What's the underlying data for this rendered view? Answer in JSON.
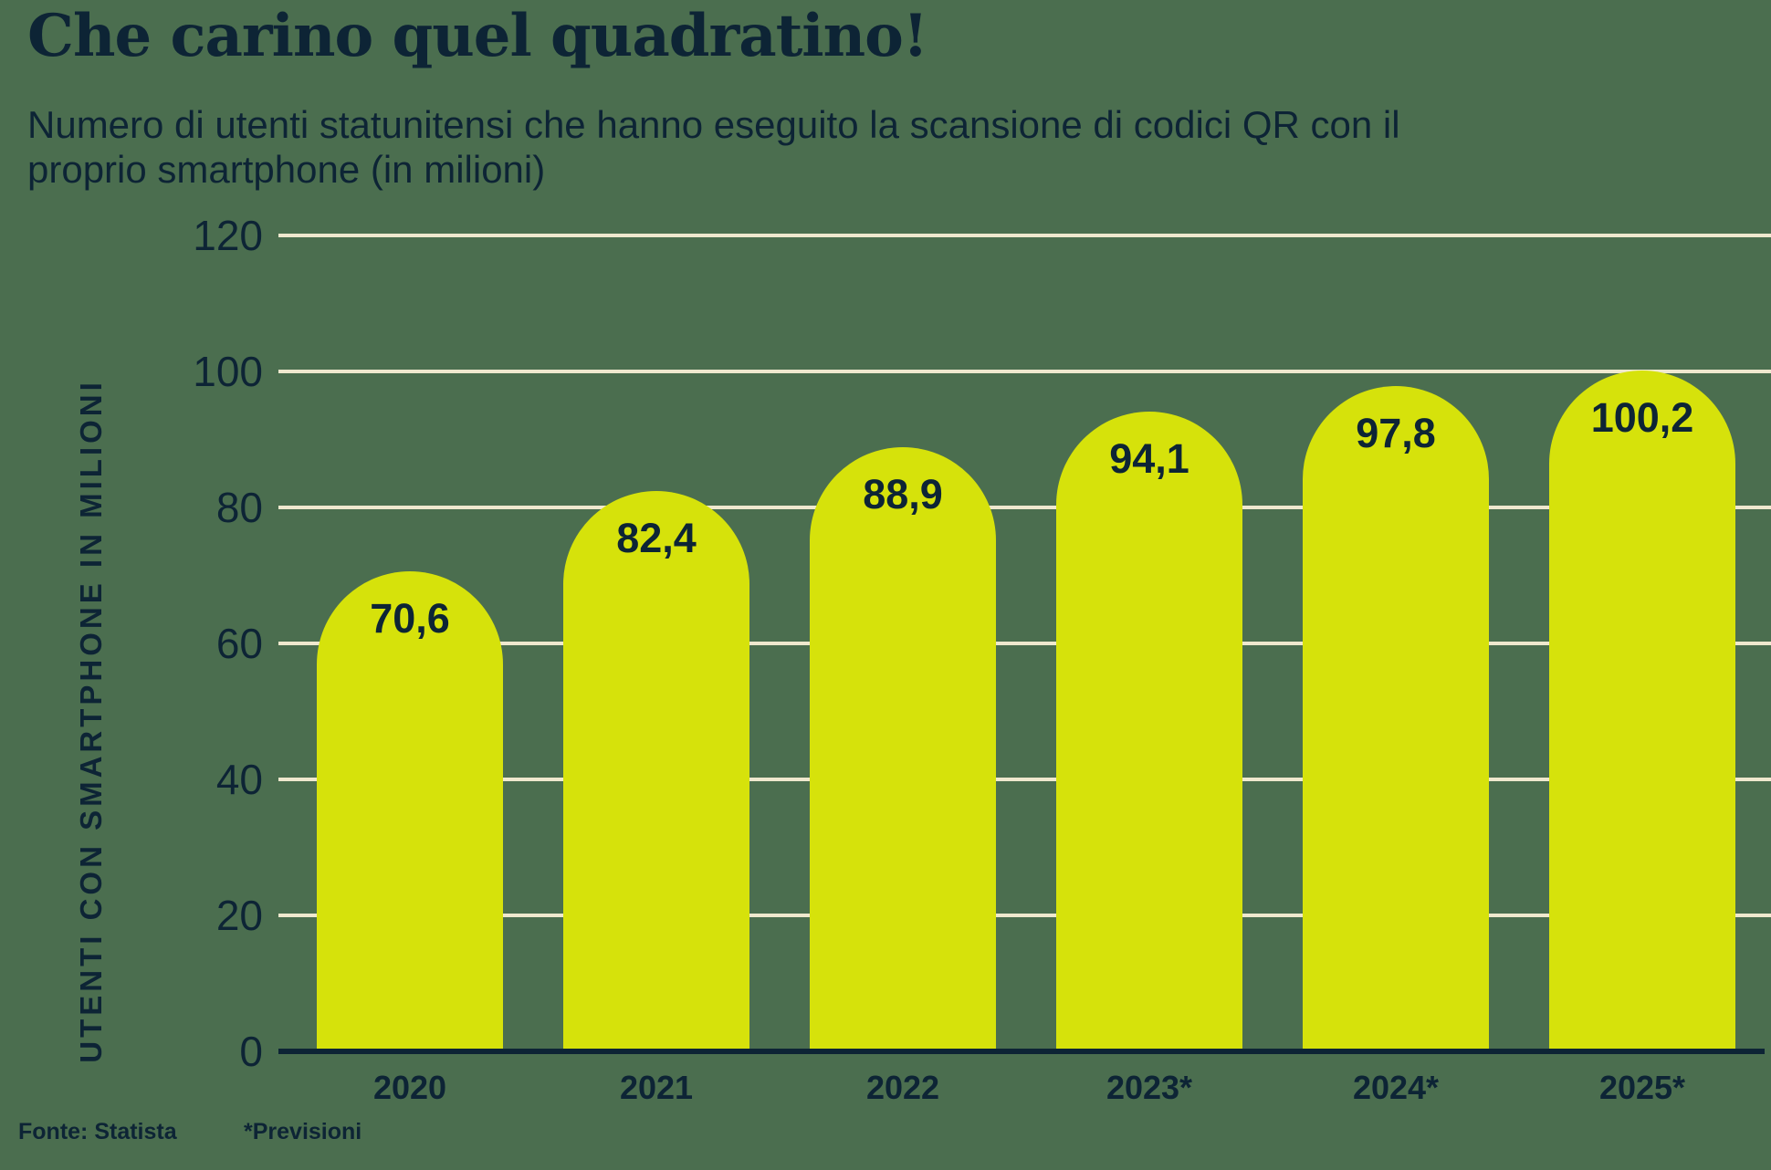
{
  "title": "Che carino quel quadratino!",
  "subtitle": {
    "line1": "Numero di utenti statunitensi che hanno eseguito la scansione di codici QR con il",
    "line2": "proprio smartphone (in milioni)"
  },
  "footer": {
    "source": "Fonte: Statista",
    "footnote": "*Previsioni"
  },
  "colors": {
    "background": "#4b6e4f",
    "bar": "#d6e20b",
    "grid": "#efe8ce",
    "ink": "#0d2435"
  },
  "chart_data": {
    "type": "bar",
    "title": "Che carino quel quadratino!",
    "subtitle": "Numero di utenti statunitensi che hanno eseguito la scansione di codici QR con il proprio smartphone (in milioni)",
    "categories": [
      "2020",
      "2021",
      "2022",
      "2023*",
      "2024*",
      "2025*"
    ],
    "values": [
      70.6,
      82.4,
      88.9,
      94.1,
      97.8,
      100.2
    ],
    "value_labels": [
      "70,6",
      "82,4",
      "88,9",
      "94,1",
      "97,8",
      "100,2"
    ],
    "xlabel": "",
    "ylabel": "UTENTI CON SMARTPHONE IN MILIONI",
    "ylim": [
      0,
      120
    ],
    "yticks": [
      0,
      20,
      40,
      60,
      80,
      100,
      120
    ],
    "grid": true,
    "legend": false,
    "bar_corner": "rounded-semicircle-top",
    "source": "Fonte: Statista",
    "footnote": "*Previsioni"
  }
}
